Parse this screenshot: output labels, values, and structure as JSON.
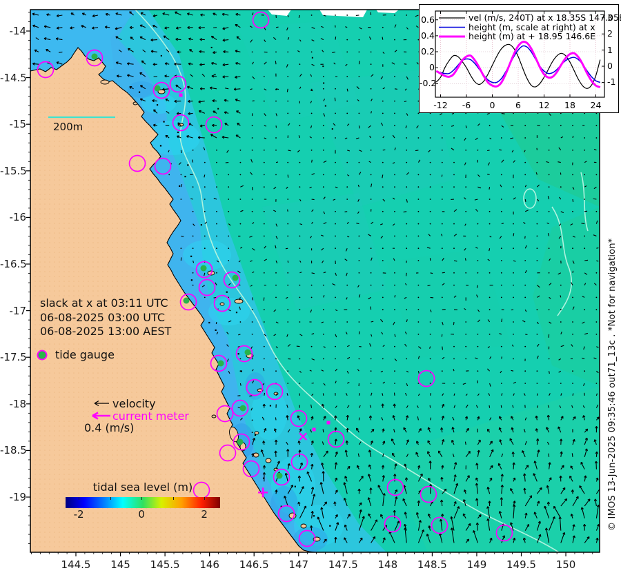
{
  "credit": "© IMOS 13-Jun-2025 09:35:46 out71_13c . *Not for navigation*",
  "map": {
    "x_ticks": [
      144.5,
      145,
      145.5,
      146,
      146.5,
      147,
      147.5,
      148,
      148.5,
      149,
      149.5,
      150
    ],
    "y_ticks": [
      -14,
      -14.5,
      -15,
      -15.5,
      -16,
      -16.5,
      -17,
      -17.5,
      -18,
      -18.5,
      -19
    ],
    "slack_lines": [
      "slack at x at 03:11 UTC",
      "06-08-2025 03:00 UTC",
      "06-08-2025 13:00 AEST"
    ],
    "legend": {
      "tide_gauge": "tide gauge",
      "velocity": "velocity",
      "current_meter": "current meter",
      "scale": "0.4 (m/s)"
    },
    "scalebar_label": "200m",
    "colorbar": {
      "title": "tidal sea level (m)",
      "ticks": [
        -2,
        -1,
        0,
        1,
        2
      ],
      "labeled_ticks": [
        -2,
        0,
        2
      ]
    },
    "current_meters": [
      [
        378,
        29
      ],
      [
        66,
        101
      ],
      [
        137,
        84
      ],
      [
        234,
        131
      ],
      [
        258,
        122
      ],
      [
        310,
        181
      ],
      [
        262,
        178
      ],
      [
        199,
        237
      ],
      [
        236,
        241
      ],
      [
        296,
        391
      ],
      [
        336,
        406
      ],
      [
        300,
        417
      ],
      [
        273,
        438
      ],
      [
        322,
        440
      ],
      [
        354,
        513
      ],
      [
        317,
        527
      ],
      [
        369,
        562
      ],
      [
        398,
        568
      ],
      [
        348,
        592
      ],
      [
        433,
        607
      ],
      [
        618,
        549
      ],
      [
        326,
        600
      ],
      [
        350,
        641
      ],
      [
        330,
        657
      ],
      [
        292,
        711
      ],
      [
        364,
        680
      ],
      [
        408,
        692
      ],
      [
        434,
        670
      ],
      [
        487,
        637
      ],
      [
        573,
        707
      ],
      [
        621,
        717
      ],
      [
        637,
        762
      ],
      [
        569,
        760
      ],
      [
        731,
        773
      ],
      [
        445,
        781
      ],
      [
        415,
        745
      ]
    ],
    "tide_gauges": [
      [
        137,
        82
      ],
      [
        228,
        128
      ],
      [
        295,
        389
      ],
      [
        341,
        403
      ],
      [
        270,
        436
      ],
      [
        359,
        511
      ],
      [
        320,
        527
      ],
      [
        352,
        592
      ],
      [
        348,
        641
      ],
      [
        405,
        690
      ]
    ],
    "small_squares": [
      [
        262,
        138
      ],
      [
        455,
        623
      ],
      [
        476,
        613
      ]
    ],
    "x_marker": {
      "lat": -18.35,
      "lon": 147.05
    },
    "plus_marker": {
      "lat": -18.95,
      "lon": 146.6
    },
    "colors": {
      "land": "#f6c99b",
      "ocean": "#15cfb0",
      "coastal_cyan": "#2cc6dd",
      "coastal_blue": "#3fb4ee",
      "right_green": "#1fcb96",
      "isobath": "#aef2de",
      "magenta": "#ff00ff",
      "gauge_green": "#28b44b",
      "scalebar_line": "#3fe3cf"
    }
  },
  "chart_data": {
    "type": "line",
    "x": [
      -13,
      -12,
      -11,
      -10,
      -9,
      -8,
      -7,
      -6,
      -5,
      -4,
      -3,
      -2,
      -1,
      0,
      1,
      2,
      3,
      4,
      5,
      6,
      7,
      8,
      9,
      10,
      11,
      12,
      13,
      14,
      15,
      16,
      17,
      18,
      19,
      20,
      21,
      22,
      23,
      24,
      25
    ],
    "series": [
      {
        "name": "vel (m/s, 240T) at x 18.35S 147.05E",
        "color": "#000000",
        "width": 1.2,
        "axis": "left",
        "values": [
          -0.18,
          -0.12,
          0.0,
          0.09,
          0.15,
          0.14,
          0.08,
          0.0,
          -0.1,
          -0.18,
          -0.21,
          -0.17,
          -0.08,
          0.03,
          0.14,
          0.23,
          0.28,
          0.29,
          0.24,
          0.14,
          0.0,
          -0.13,
          -0.22,
          -0.24,
          -0.2,
          -0.12,
          -0.02,
          0.08,
          0.15,
          0.18,
          0.15,
          0.07,
          -0.04,
          -0.15,
          -0.23,
          -0.26,
          -0.22,
          -0.1,
          0.1
        ]
      },
      {
        "name": "height (m, scale at right) at x",
        "color": "#0000dd",
        "width": 1.5,
        "axis": "right",
        "values": [
          -0.35,
          -0.4,
          -0.45,
          -0.45,
          -0.25,
          0.05,
          0.35,
          0.45,
          0.4,
          0.15,
          -0.2,
          -0.55,
          -0.85,
          -1.0,
          -1.0,
          -0.8,
          -0.4,
          0.1,
          0.6,
          1.0,
          1.25,
          1.2,
          0.9,
          0.45,
          0.0,
          -0.3,
          -0.45,
          -0.4,
          -0.2,
          0.1,
          0.35,
          0.5,
          0.55,
          0.4,
          0.1,
          -0.3,
          -0.65,
          -0.9,
          -1.0
        ]
      },
      {
        "name": "height (m) at + 18.95 146.6E",
        "color": "#ff00ff",
        "width": 3,
        "axis": "right",
        "values": [
          -0.3,
          -0.45,
          -0.6,
          -0.65,
          -0.5,
          -0.1,
          0.35,
          0.6,
          0.65,
          0.35,
          -0.1,
          -0.6,
          -1.0,
          -1.2,
          -1.25,
          -1.05,
          -0.55,
          0.1,
          0.75,
          1.25,
          1.5,
          1.45,
          1.1,
          0.55,
          -0.05,
          -0.5,
          -0.7,
          -0.65,
          -0.35,
          0.1,
          0.5,
          0.75,
          0.8,
          0.55,
          0.1,
          -0.45,
          -0.9,
          -1.2,
          -1.3
        ]
      }
    ],
    "x_ticks": [
      -12,
      -6,
      0,
      6,
      12,
      18,
      24
    ],
    "left_ticks": [
      0.6,
      0.4,
      0.2,
      0,
      -0.2
    ],
    "right_ticks": [
      3,
      2,
      1,
      0,
      -1
    ],
    "xlim": [
      -13.2,
      26
    ],
    "left_ylim": [
      -0.37,
      0.71
    ],
    "right_ylim": [
      -1.92,
      3.42
    ],
    "grid": true,
    "legend_position": "top-left"
  }
}
